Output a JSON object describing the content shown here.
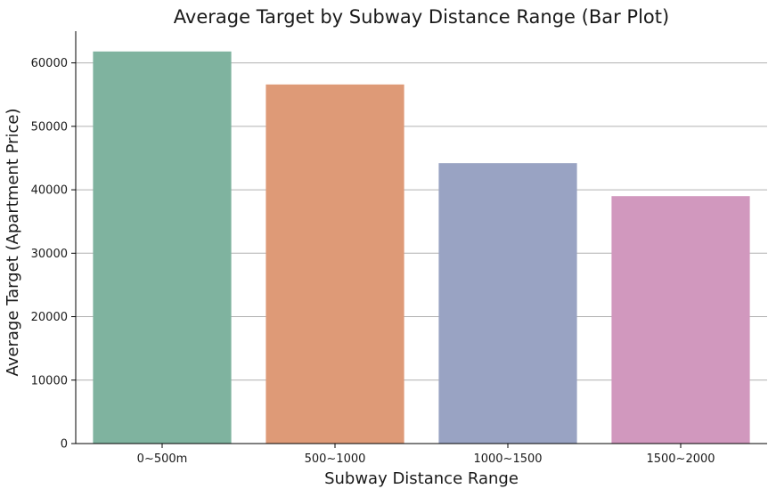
{
  "chart_data": {
    "type": "bar",
    "title": "Average Target by Subway Distance Range (Bar Plot)",
    "xlabel": "Subway Distance Range",
    "ylabel": "Average Target (Apartment Price)",
    "categories": [
      "0~500m",
      "500~1000",
      "1000~1500",
      "1500~2000"
    ],
    "values": [
      61800,
      56600,
      44200,
      39000
    ],
    "colors": [
      "#7fb39f",
      "#de9a77",
      "#99a3c3",
      "#d198be"
    ],
    "ylim": [
      0,
      65000
    ],
    "yticks": [
      0,
      10000,
      20000,
      30000,
      40000,
      50000,
      60000
    ],
    "ytick_labels": [
      "0",
      "10000",
      "20000",
      "30000",
      "40000",
      "50000",
      "60000"
    ],
    "grid": "horizontal",
    "legend": "none"
  }
}
